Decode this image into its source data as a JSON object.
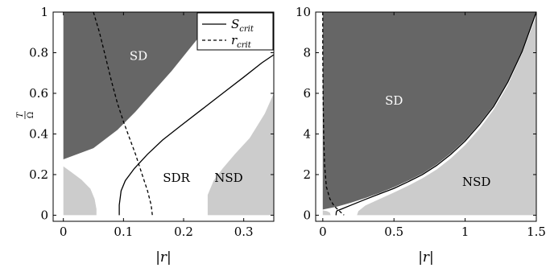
{
  "chart_data": [
    {
      "type": "area",
      "xlabel": "|r|",
      "ylabel": "T/Ω",
      "xlim": [
        -0.017,
        0.35
      ],
      "ylim": [
        -0.03,
        1.0
      ],
      "xticks": [
        "0",
        "0.1",
        "0.2",
        "0.3"
      ],
      "xtick_values": [
        0,
        0.1,
        0.2,
        0.3
      ],
      "yticks": [
        "0",
        "0.2",
        "0.4",
        "0.6",
        "0.8",
        "1"
      ],
      "ytick_values": [
        0,
        0.2,
        0.4,
        0.6,
        0.8,
        1
      ],
      "legend_position": "top-right",
      "colors": {
        "SD": "#666666",
        "NSD": "#cccccc",
        "SDR": "#ffffff",
        "curve": "#000000"
      },
      "regions": [
        {
          "label": "SD",
          "label_at": [
            0.125,
            0.78
          ],
          "label_color": "#ffffff",
          "polygon": [
            [
              0,
              0.275
            ],
            [
              0.05,
              0.33
            ],
            [
              0.09,
              0.42
            ],
            [
              0.12,
              0.51
            ],
            [
              0.15,
              0.61
            ],
            [
              0.18,
              0.71
            ],
            [
              0.21,
              0.82
            ],
            [
              0.24,
              0.93
            ],
            [
              0.26,
              1.0
            ],
            [
              0,
              1.0
            ]
          ]
        },
        {
          "label": "NSD",
          "label_at": [
            0.275,
            0.18
          ],
          "label_color": "#000000",
          "polygon": [
            [
              0.24,
              0
            ],
            [
              0.24,
              0.1
            ],
            [
              0.25,
              0.17
            ],
            [
              0.265,
              0.23
            ],
            [
              0.285,
              0.3
            ],
            [
              0.31,
              0.38
            ],
            [
              0.335,
              0.5
            ],
            [
              0.35,
              0.6
            ],
            [
              0.35,
              0
            ]
          ]
        },
        {
          "label": "",
          "polygon": [
            [
              0,
              0
            ],
            [
              0,
              0.24
            ],
            [
              0.012,
              0.215
            ],
            [
              0.03,
              0.175
            ],
            [
              0.045,
              0.13
            ],
            [
              0.052,
              0.08
            ],
            [
              0.055,
              0.03
            ],
            [
              0.055,
              0
            ]
          ]
        },
        {
          "label": "SDR",
          "label_at": [
            0.188,
            0.18
          ],
          "label_color": "#000000",
          "polygon": []
        }
      ],
      "series": [
        {
          "name": "S_crit",
          "style": "solid",
          "points": [
            [
              0.093,
              0
            ],
            [
              0.093,
              0.05
            ],
            [
              0.096,
              0.12
            ],
            [
              0.103,
              0.17
            ],
            [
              0.118,
              0.23
            ],
            [
              0.14,
              0.3
            ],
            [
              0.165,
              0.37
            ],
            [
              0.195,
              0.44
            ],
            [
              0.23,
              0.52
            ],
            [
              0.265,
              0.6
            ],
            [
              0.3,
              0.68
            ],
            [
              0.33,
              0.75
            ],
            [
              0.35,
              0.79
            ]
          ]
        },
        {
          "name": "r_crit",
          "style": "dashed",
          "points": [
            [
              0.05,
              1.0
            ],
            [
              0.06,
              0.9
            ],
            [
              0.07,
              0.78
            ],
            [
              0.08,
              0.66
            ],
            [
              0.09,
              0.55
            ],
            [
              0.1,
              0.46
            ],
            [
              0.11,
              0.38
            ],
            [
              0.12,
              0.3
            ],
            [
              0.13,
              0.21
            ],
            [
              0.14,
              0.12
            ],
            [
              0.146,
              0.05
            ],
            [
              0.148,
              0
            ]
          ]
        }
      ]
    },
    {
      "type": "area",
      "xlabel": "|r|",
      "ylabel": "",
      "xlim": [
        -0.05,
        1.5
      ],
      "ylim": [
        -0.3,
        10.0
      ],
      "xticks": [
        "0",
        "0.5",
        "1",
        "1.5"
      ],
      "xtick_values": [
        0,
        0.5,
        1,
        1.5
      ],
      "yticks": [
        "0",
        "2",
        "4",
        "6",
        "8",
        "10"
      ],
      "ytick_values": [
        0,
        2,
        4,
        6,
        8,
        10
      ],
      "colors": {
        "SD": "#666666",
        "NSD": "#cccccc",
        "white": "#ffffff",
        "curve": "#000000"
      },
      "regions": [
        {
          "label": "SD",
          "label_at": [
            0.5,
            5.6
          ],
          "label_color": "#ffffff",
          "polygon": [
            [
              0,
              0.28
            ],
            [
              0.1,
              0.42
            ],
            [
              0.2,
              0.62
            ],
            [
              0.3,
              0.85
            ],
            [
              0.4,
              1.1
            ],
            [
              0.5,
              1.38
            ],
            [
              0.6,
              1.7
            ],
            [
              0.7,
              2.05
            ],
            [
              0.8,
              2.5
            ],
            [
              0.9,
              3.05
            ],
            [
              1.0,
              3.7
            ],
            [
              1.1,
              4.5
            ],
            [
              1.2,
              5.4
            ],
            [
              1.3,
              6.6
            ],
            [
              1.4,
              8.1
            ],
            [
              1.5,
              10.0
            ],
            [
              0,
              10.0
            ]
          ]
        },
        {
          "label": "NSD",
          "label_at": [
            1.08,
            1.6
          ],
          "label_color": "#000000",
          "polygon": [
            [
              0.24,
              0
            ],
            [
              0.25,
              0.2
            ],
            [
              0.3,
              0.48
            ],
            [
              0.4,
              0.8
            ],
            [
              0.5,
              1.12
            ],
            [
              0.6,
              1.45
            ],
            [
              0.7,
              1.82
            ],
            [
              0.8,
              2.25
            ],
            [
              0.9,
              2.8
            ],
            [
              1.0,
              3.45
            ],
            [
              1.1,
              4.25
            ],
            [
              1.2,
              5.2
            ],
            [
              1.3,
              6.4
            ],
            [
              1.4,
              7.95
            ],
            [
              1.5,
              9.8
            ],
            [
              1.5,
              0
            ]
          ]
        },
        {
          "label": "",
          "polygon": [
            [
              0,
              0
            ],
            [
              0,
              0.24
            ],
            [
              0.03,
              0.2
            ],
            [
              0.05,
              0.12
            ],
            [
              0.055,
              0
            ]
          ]
        }
      ],
      "series": [
        {
          "name": "S_crit",
          "style": "solid",
          "points": [
            [
              0.093,
              0
            ],
            [
              0.095,
              0.15
            ],
            [
              0.1,
              0.22
            ],
            [
              0.13,
              0.3
            ],
            [
              0.2,
              0.5
            ],
            [
              0.3,
              0.78
            ],
            [
              0.4,
              1.05
            ],
            [
              0.5,
              1.32
            ],
            [
              0.6,
              1.65
            ],
            [
              0.7,
              2.0
            ],
            [
              0.8,
              2.45
            ],
            [
              0.9,
              3.0
            ],
            [
              1.0,
              3.65
            ],
            [
              1.1,
              4.45
            ],
            [
              1.2,
              5.35
            ],
            [
              1.3,
              6.55
            ],
            [
              1.4,
              8.05
            ],
            [
              1.5,
              10.0
            ]
          ]
        },
        {
          "name": "r_crit",
          "style": "dashed",
          "points": [
            [
              0.0,
              10.0
            ],
            [
              0.0,
              8.0
            ],
            [
              0.002,
              6.0
            ],
            [
              0.006,
              4.0
            ],
            [
              0.012,
              2.5
            ],
            [
              0.025,
              1.4
            ],
            [
              0.05,
              0.8
            ],
            [
              0.08,
              0.45
            ],
            [
              0.11,
              0.25
            ],
            [
              0.13,
              0.12
            ],
            [
              0.145,
              0.05
            ],
            [
              0.148,
              0
            ]
          ]
        }
      ]
    }
  ]
}
